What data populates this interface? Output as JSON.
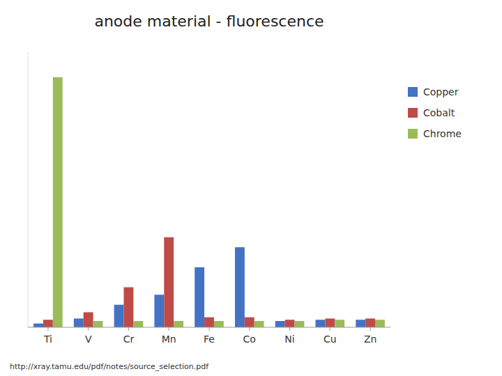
{
  "chart_data": {
    "type": "bar",
    "title": "anode material - fluorescence",
    "categories": [
      "Ti",
      "V",
      "Cr",
      "Mn",
      "Fe",
      "Co",
      "Ni",
      "Cu",
      "Zn"
    ],
    "series": [
      {
        "name": "Copper",
        "color": "#4472C4",
        "values": [
          1.5,
          3.5,
          9,
          13,
          24,
          32,
          2.5,
          3,
          3
        ]
      },
      {
        "name": "Cobalt",
        "color": "#BE4B48",
        "values": [
          3,
          6,
          16,
          36,
          4,
          4,
          3,
          3.5,
          3.5
        ]
      },
      {
        "name": "Chrome",
        "color": "#9BBB59",
        "values": [
          100,
          2.5,
          2.5,
          2.5,
          2.5,
          2.5,
          2.5,
          3,
          3
        ]
      }
    ],
    "ylim": [
      0,
      110
    ],
    "tick_labels": "x",
    "grid": false,
    "legend": "upper right",
    "annotations": [
      "http://xray.tamu.edu/pdf/notes/source_selection.pdf"
    ]
  }
}
